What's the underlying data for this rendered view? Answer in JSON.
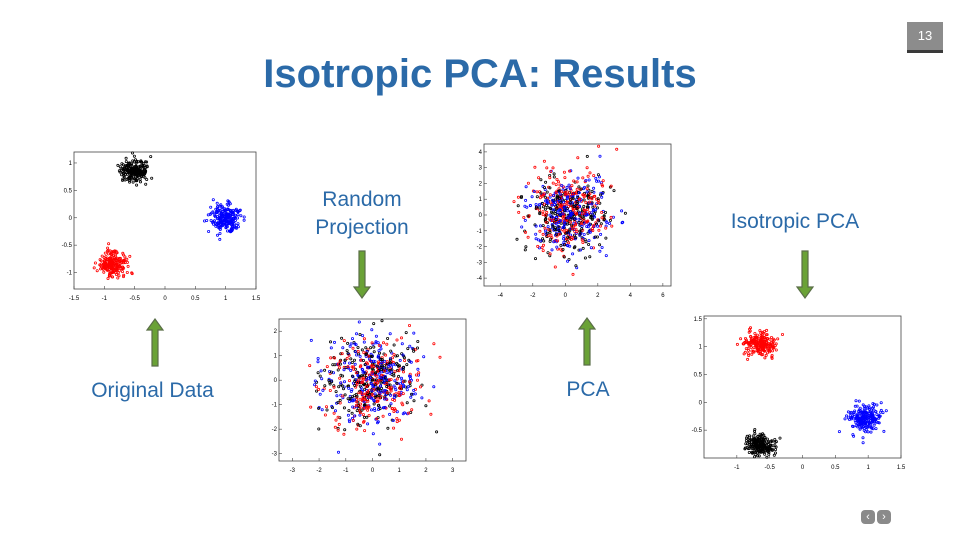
{
  "slide_number": "13",
  "title": "Isotropic PCA: Results",
  "labels": {
    "original": "Original Data",
    "random": "Random Projection",
    "pca": "PCA",
    "isotropic": "Isotropic PCA"
  },
  "nav": {
    "prev": "‹",
    "next": "›"
  },
  "colors": {
    "title": "#2b6aa8",
    "arrow": "#6b8f3a",
    "red": "#ff0000",
    "blue": "#0000ff",
    "black": "#000000"
  },
  "chart_data": [
    {
      "type": "scatter",
      "name": "original",
      "xticks": [
        "-1.5",
        "-1",
        "-0.5",
        "0",
        "0.5",
        "1",
        "1.5"
      ],
      "yticks": [
        "1",
        "0.5",
        "0",
        "-0.5",
        "-1"
      ],
      "xlim": [
        -1.5,
        1.5
      ],
      "ylim": [
        -1.3,
        1.2
      ],
      "series": [
        {
          "color": "black",
          "cx": -0.5,
          "cy": 0.85,
          "sx": 0.12,
          "sy": 0.1,
          "n": 220
        },
        {
          "color": "blue",
          "cx": 1.0,
          "cy": 0.0,
          "sx": 0.12,
          "sy": 0.12,
          "n": 220
        },
        {
          "color": "red",
          "cx": -0.85,
          "cy": -0.85,
          "sx": 0.12,
          "sy": 0.11,
          "n": 220
        }
      ]
    },
    {
      "type": "scatter",
      "name": "random",
      "xticks": [
        "-3",
        "-2",
        "-1",
        "0",
        "1",
        "2",
        "3"
      ],
      "yticks": [
        "2",
        "1",
        "0",
        "-1",
        "-2",
        "-3"
      ],
      "xlim": [
        -3.5,
        3.5
      ],
      "ylim": [
        -3.3,
        2.5
      ],
      "series": [
        {
          "color": "black",
          "cx": 0.0,
          "cy": 0.0,
          "sx": 0.9,
          "sy": 0.9,
          "n": 250
        },
        {
          "color": "blue",
          "cx": 0.0,
          "cy": 0.0,
          "sx": 0.9,
          "sy": 0.9,
          "n": 250
        },
        {
          "color": "red",
          "cx": 0.0,
          "cy": -0.2,
          "sx": 0.9,
          "sy": 0.9,
          "n": 250
        }
      ]
    },
    {
      "type": "scatter",
      "name": "pca",
      "xticks": [
        "-4",
        "-2",
        "0",
        "2",
        "4",
        "6"
      ],
      "yticks": [
        "4",
        "3",
        "2",
        "1",
        "0",
        "-1",
        "-2",
        "-3",
        "-4"
      ],
      "xlim": [
        -5,
        6.5
      ],
      "ylim": [
        -4.5,
        4.5
      ],
      "series": [
        {
          "color": "black",
          "cx": 0.2,
          "cy": 0.0,
          "sx": 1.2,
          "sy": 1.1,
          "n": 250
        },
        {
          "color": "blue",
          "cx": 0.2,
          "cy": 0.0,
          "sx": 1.2,
          "sy": 1.1,
          "n": 250
        },
        {
          "color": "red",
          "cx": 0.2,
          "cy": 0.3,
          "sx": 1.2,
          "sy": 1.3,
          "n": 250
        }
      ]
    },
    {
      "type": "scatter",
      "name": "isotropic",
      "xticks": [
        "-1",
        "-0.5",
        "0",
        "0.5",
        "1",
        "1.5"
      ],
      "yticks": [
        "1.5",
        "1",
        "0.5",
        "0",
        "-0.5"
      ],
      "xlim": [
        -1.5,
        1.5
      ],
      "ylim": [
        -1.0,
        1.55
      ],
      "series": [
        {
          "color": "red",
          "cx": -0.65,
          "cy": 1.05,
          "sx": 0.12,
          "sy": 0.1,
          "n": 220
        },
        {
          "color": "blue",
          "cx": 0.95,
          "cy": -0.3,
          "sx": 0.12,
          "sy": 0.12,
          "n": 220
        },
        {
          "color": "black",
          "cx": -0.65,
          "cy": -0.75,
          "sx": 0.12,
          "sy": 0.1,
          "n": 220
        }
      ]
    }
  ]
}
